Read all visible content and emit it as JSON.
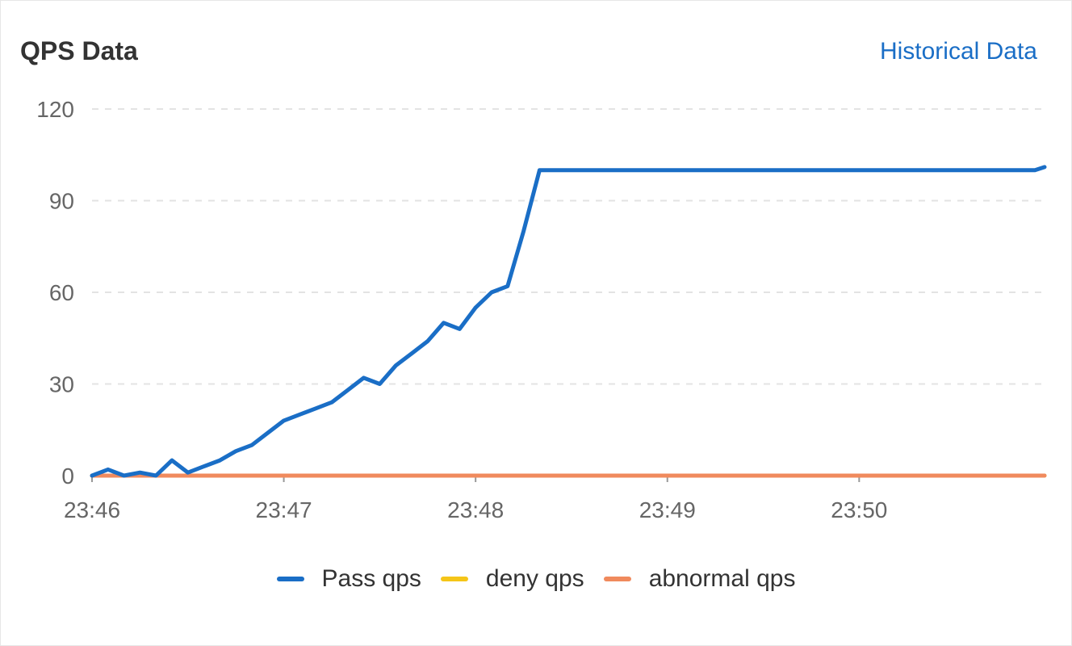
{
  "header": {
    "title": "QPS Data",
    "history_link": "Historical Data"
  },
  "colors": {
    "pass": "#1a6ec6",
    "deny": "#f5c518",
    "abnormal": "#f08a5d",
    "grid": "#e3e3e3",
    "axis_text": "#666666"
  },
  "legend": [
    {
      "name": "Pass qps",
      "color": "#1a6ec6"
    },
    {
      "name": "deny qps",
      "color": "#f5c518"
    },
    {
      "name": "abnormal qps",
      "color": "#f08a5d"
    }
  ],
  "chart_data": {
    "type": "line",
    "title": "QPS Data",
    "xlabel": "",
    "ylabel": "",
    "ylim": [
      0,
      120
    ],
    "yticks": [
      "0",
      "30",
      "60",
      "90",
      "120"
    ],
    "xlim": [
      "23:46:00",
      "23:50:58"
    ],
    "xticks": [
      "23:46",
      "23:47",
      "23:48",
      "23:49",
      "23:50"
    ],
    "grid": true,
    "legend_position": "bottom",
    "x": [
      "23:46:00",
      "23:46:05",
      "23:46:10",
      "23:46:15",
      "23:46:20",
      "23:46:25",
      "23:46:30",
      "23:46:35",
      "23:46:40",
      "23:46:45",
      "23:46:50",
      "23:46:55",
      "23:47:00",
      "23:47:05",
      "23:47:10",
      "23:47:15",
      "23:47:20",
      "23:47:25",
      "23:47:30",
      "23:47:35",
      "23:47:40",
      "23:47:45",
      "23:47:50",
      "23:47:55",
      "23:48:00",
      "23:48:05",
      "23:48:10",
      "23:48:15",
      "23:48:20",
      "23:48:25",
      "23:48:30",
      "23:48:35",
      "23:48:40",
      "23:48:45",
      "23:48:50",
      "23:48:55",
      "23:49:00",
      "23:49:05",
      "23:49:10",
      "23:49:15",
      "23:49:20",
      "23:49:25",
      "23:49:30",
      "23:49:35",
      "23:49:40",
      "23:49:45",
      "23:49:50",
      "23:49:55",
      "23:50:00",
      "23:50:05",
      "23:50:10",
      "23:50:15",
      "23:50:20",
      "23:50:25",
      "23:50:30",
      "23:50:35",
      "23:50:40",
      "23:50:45",
      "23:50:50",
      "23:50:55",
      "23:50:58"
    ],
    "series": [
      {
        "name": "Pass qps",
        "values": [
          0,
          2,
          0,
          1,
          0,
          5,
          1,
          3,
          5,
          8,
          10,
          14,
          18,
          20,
          22,
          24,
          28,
          32,
          30,
          36,
          40,
          44,
          50,
          48,
          55,
          60,
          62,
          80,
          100,
          100,
          100,
          100,
          100,
          100,
          100,
          100,
          100,
          100,
          100,
          100,
          100,
          100,
          100,
          100,
          100,
          100,
          100,
          100,
          100,
          100,
          100,
          100,
          100,
          100,
          100,
          100,
          100,
          100,
          100,
          100,
          101
        ]
      },
      {
        "name": "deny qps",
        "values": [
          0,
          0,
          0,
          0,
          0,
          0,
          0,
          0,
          0,
          0,
          0,
          0,
          0,
          0,
          0,
          0,
          0,
          0,
          0,
          0,
          0,
          0,
          0,
          0,
          0,
          0,
          0,
          0,
          0,
          0,
          0,
          0,
          0,
          0,
          0,
          0,
          0,
          0,
          0,
          0,
          0,
          0,
          0,
          0,
          0,
          0,
          0,
          0,
          0,
          0,
          0,
          0,
          0,
          0,
          0,
          0,
          0,
          0,
          0,
          0,
          0
        ]
      },
      {
        "name": "abnormal qps",
        "values": [
          0,
          0,
          0,
          0,
          0,
          0,
          0,
          0,
          0,
          0,
          0,
          0,
          0,
          0,
          0,
          0,
          0,
          0,
          0,
          0,
          0,
          0,
          0,
          0,
          0,
          0,
          0,
          0,
          0,
          0,
          0,
          0,
          0,
          0,
          0,
          0,
          0,
          0,
          0,
          0,
          0,
          0,
          0,
          0,
          0,
          0,
          0,
          0,
          0,
          0,
          0,
          0,
          0,
          0,
          0,
          0,
          0,
          0,
          0,
          0,
          0
        ]
      }
    ]
  }
}
